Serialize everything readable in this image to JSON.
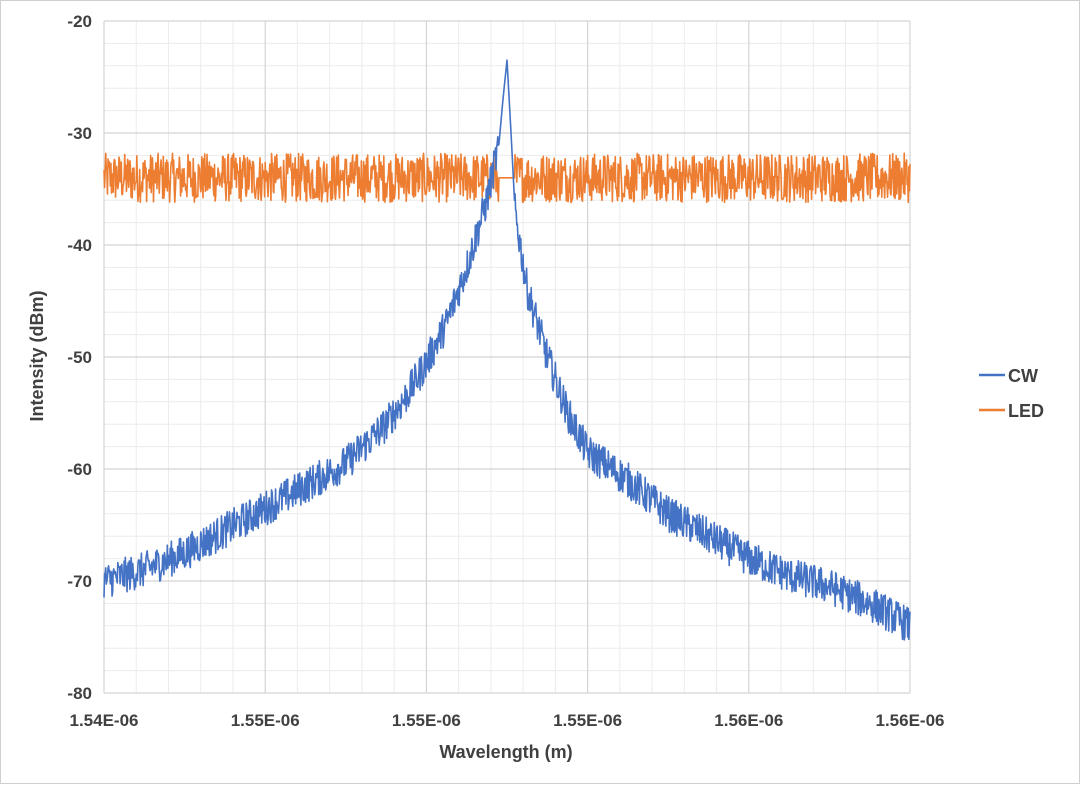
{
  "chart_data": {
    "type": "line",
    "xlabel": "Wavelength (m)",
    "ylabel": "Intensity (dBm)",
    "xlim": [
      1.54e-06,
      1.56e-06
    ],
    "ylim": [
      -80,
      -20
    ],
    "x_ticks": [
      1.54e-06,
      1.544e-06,
      1.548e-06,
      1.552e-06,
      1.556e-06,
      1.56e-06
    ],
    "x_tick_labels": [
      "1.54E-06",
      "1.55E-06",
      "1.55E-06",
      "1.55E-06",
      "1.56E-06",
      "1.56E-06"
    ],
    "y_ticks": [
      -20,
      -30,
      -40,
      -50,
      -60,
      -70,
      -80
    ],
    "y_tick_labels": [
      "-20",
      "-30",
      "-40",
      "-50",
      "-60",
      "-70",
      "-80"
    ],
    "grid": true,
    "legend_position": "right",
    "series": [
      {
        "name": "CW",
        "color": "#4472C4",
        "x": [
          1.54e-06,
          1.541e-06,
          1.542e-06,
          1.543e-06,
          1.544e-06,
          1.545e-06,
          1.546e-06,
          1.547e-06,
          1.5475e-06,
          1.548e-06,
          1.5485e-06,
          1.549e-06,
          1.5495e-06,
          1.5498e-06,
          1.5499e-06,
          1.55e-06,
          1.5501e-06,
          1.5502e-06,
          1.5505e-06,
          1.551e-06,
          1.5515e-06,
          1.552e-06,
          1.553e-06,
          1.554e-06,
          1.555e-06,
          1.556e-06,
          1.557e-06,
          1.558e-06,
          1.559e-06,
          1.56e-06
        ],
        "values": [
          -70,
          -69,
          -67.5,
          -65.5,
          -63.5,
          -61.5,
          -59.5,
          -56,
          -53.5,
          -50.5,
          -47,
          -42,
          -36,
          -31,
          -27,
          -23.5,
          -30,
          -37,
          -44,
          -50,
          -55,
          -58.5,
          -61,
          -64,
          -66,
          -68,
          -69.5,
          -70.5,
          -72,
          -74
        ]
      },
      {
        "name": "LED",
        "color": "#ED7D31",
        "x": [
          1.54e-06,
          1.56e-06
        ],
        "values": [
          -34,
          -34
        ]
      }
    ]
  }
}
